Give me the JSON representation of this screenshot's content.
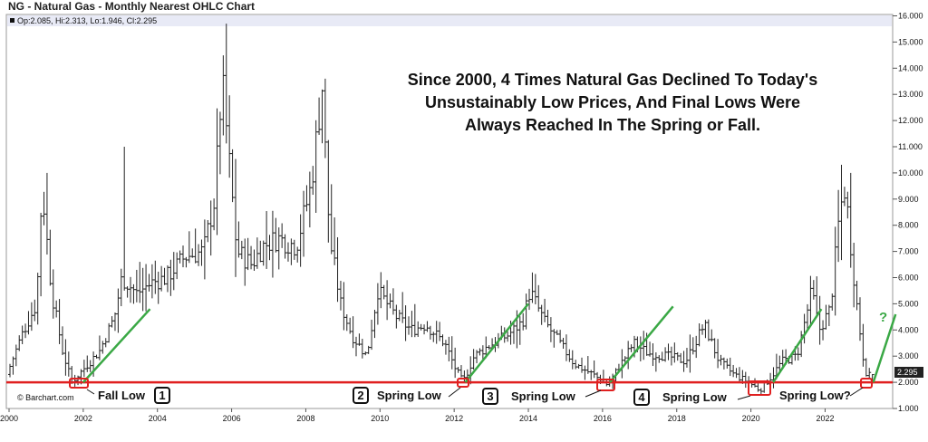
{
  "header": {
    "title": "NG - Natural Gas - Monthly Nearest OHLC Chart",
    "ohlc_readout": "Op:2.085, Hi:2.313, Lo:1.946, Cl:2.295"
  },
  "annotation": {
    "lines": [
      "Since 2000, 4 Times Natural Gas Declined To Today's",
      "Unsustainably Low Prices, And Final Lows Were",
      "Always Reached In The Spring or Fall."
    ]
  },
  "copyright": "© Barchart.com",
  "current_price_label": "2.295",
  "future_question_mark": "?",
  "colors": {
    "support_line": "#e02020",
    "trend_lines": "#3aa845",
    "bars": "#222222",
    "price_tag_bg": "#222222",
    "header_band": "#e8eaf6"
  },
  "chart_data": {
    "type": "ohlc",
    "title": "NG - Natural Gas - Monthly Nearest OHLC Chart",
    "interval": "monthly",
    "x_ticks": [
      "2000",
      "2002",
      "2004",
      "2006",
      "2008",
      "2010",
      "2012",
      "2014",
      "2016",
      "2018",
      "2020",
      "2022"
    ],
    "y_ticks": [
      "1.000",
      "2.000",
      "3.000",
      "4.000",
      "5.000",
      "6.000",
      "7.000",
      "8.000",
      "9.000",
      "10.000",
      "11.000",
      "12.000",
      "13.000",
      "14.000",
      "15.000",
      "16.000"
    ],
    "ylim": [
      1,
      16
    ],
    "xlim": [
      2000,
      2023.9
    ],
    "y_scale": "linear",
    "grid": false,
    "last_bar": {
      "open": 2.085,
      "high": 2.313,
      "low": 1.946,
      "close": 2.295
    },
    "approx_closes": [
      [
        2000.0,
        2.3
      ],
      [
        2000.4,
        3.8
      ],
      [
        2000.8,
        5.0
      ],
      [
        2000.95,
        9.5
      ],
      [
        2001.2,
        5.5
      ],
      [
        2001.5,
        3.2
      ],
      [
        2001.75,
        2.0
      ],
      [
        2002.0,
        2.4
      ],
      [
        2002.5,
        3.2
      ],
      [
        2002.9,
        4.5
      ],
      [
        2003.1,
        6.0
      ],
      [
        2003.5,
        5.4
      ],
      [
        2003.9,
        5.8
      ],
      [
        2004.3,
        6.0
      ],
      [
        2004.8,
        6.8
      ],
      [
        2005.3,
        7.0
      ],
      [
        2005.6,
        9.0
      ],
      [
        2005.8,
        13.5
      ],
      [
        2005.9,
        12.0
      ],
      [
        2006.2,
        7.0
      ],
      [
        2006.6,
        6.5
      ],
      [
        2006.9,
        7.2
      ],
      [
        2007.3,
        7.5
      ],
      [
        2007.8,
        7.2
      ],
      [
        2008.2,
        9.5
      ],
      [
        2008.5,
        13.3
      ],
      [
        2008.7,
        7.5
      ],
      [
        2009.0,
        5.0
      ],
      [
        2009.3,
        3.8
      ],
      [
        2009.7,
        3.0
      ],
      [
        2010.0,
        5.5
      ],
      [
        2010.5,
        4.5
      ],
      [
        2010.9,
        4.0
      ],
      [
        2011.3,
        4.2
      ],
      [
        2011.8,
        3.5
      ],
      [
        2012.1,
        2.5
      ],
      [
        2012.3,
        2.0
      ],
      [
        2012.6,
        3.0
      ],
      [
        2013.0,
        3.4
      ],
      [
        2013.5,
        3.8
      ],
      [
        2013.9,
        4.3
      ],
      [
        2014.1,
        5.5
      ],
      [
        2014.5,
        4.3
      ],
      [
        2014.9,
        3.5
      ],
      [
        2015.3,
        2.7
      ],
      [
        2015.8,
        2.3
      ],
      [
        2016.1,
        2.0
      ],
      [
        2016.2,
        1.9
      ],
      [
        2016.6,
        2.8
      ],
      [
        2016.9,
        3.5
      ],
      [
        2017.3,
        3.1
      ],
      [
        2017.8,
        3.0
      ],
      [
        2018.3,
        2.8
      ],
      [
        2018.8,
        4.2
      ],
      [
        2019.2,
        2.8
      ],
      [
        2019.6,
        2.3
      ],
      [
        2020.0,
        2.0
      ],
      [
        2020.3,
        1.7
      ],
      [
        2020.6,
        2.2
      ],
      [
        2020.9,
        2.8
      ],
      [
        2021.3,
        3.0
      ],
      [
        2021.7,
        5.5
      ],
      [
        2021.9,
        4.0
      ],
      [
        2022.2,
        4.8
      ],
      [
        2022.45,
        8.5
      ],
      [
        2022.6,
        9.5
      ],
      [
        2022.8,
        6.5
      ],
      [
        2022.95,
        4.5
      ],
      [
        2023.1,
        2.8
      ],
      [
        2023.2,
        2.2
      ],
      [
        2023.3,
        2.295
      ]
    ],
    "support_level": 2.0,
    "lows": [
      {
        "id": "1",
        "label": "Fall Low",
        "year": 2001.8,
        "price": 1.9
      },
      {
        "id": "2",
        "label": "Spring Low",
        "year": 2012.3,
        "price": 1.95
      },
      {
        "id": "3",
        "label": "Spring Low",
        "year": 2016.2,
        "price": 1.75
      },
      {
        "id": "4",
        "label": "Spring Low",
        "year": 2020.3,
        "price": 1.5
      },
      {
        "id": "",
        "label": "Spring Low?",
        "year": 2023.2,
        "price": 1.95
      }
    ],
    "trend_lines": [
      {
        "from": [
          2002.0,
          2.0
        ],
        "to": [
          2003.8,
          4.8
        ]
      },
      {
        "from": [
          2012.3,
          2.0
        ],
        "to": [
          2014.0,
          5.0
        ]
      },
      {
        "from": [
          2016.2,
          2.0
        ],
        "to": [
          2017.9,
          4.9
        ]
      },
      {
        "from": [
          2020.6,
          2.0
        ],
        "to": [
          2021.9,
          4.8
        ]
      },
      {
        "from": [
          2023.3,
          2.0
        ],
        "to": [
          2023.9,
          4.6
        ]
      }
    ]
  }
}
